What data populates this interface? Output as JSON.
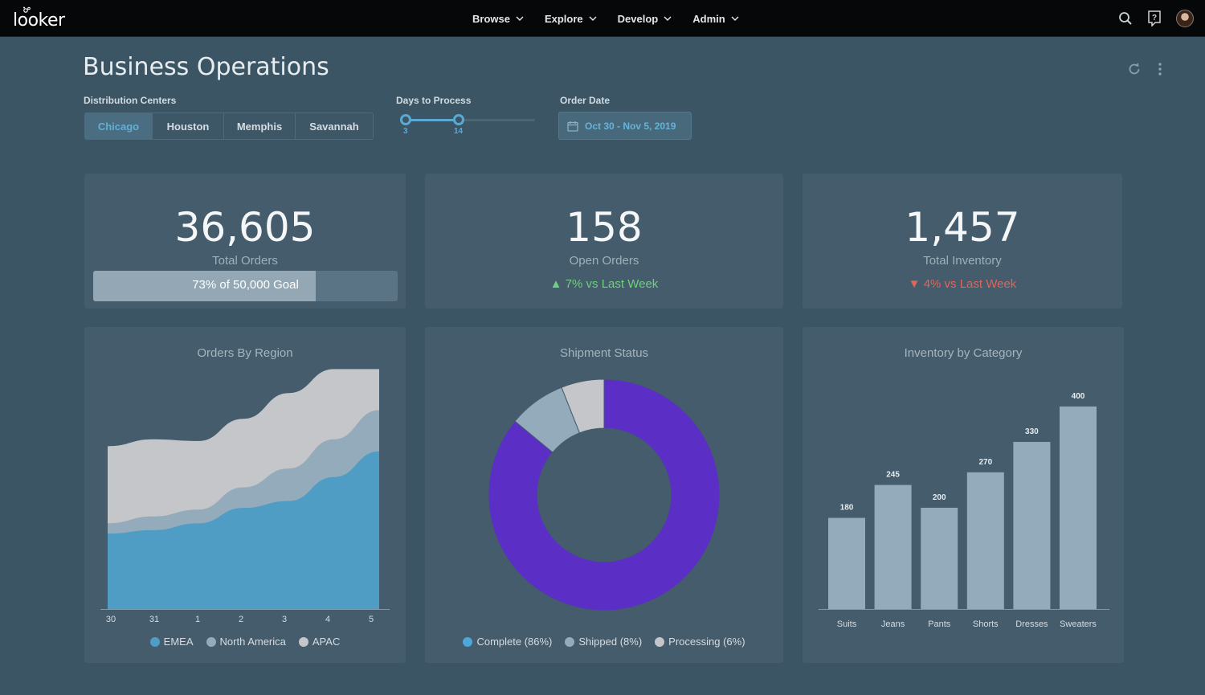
{
  "app": {
    "logo_text": "looker"
  },
  "nav": [
    {
      "label": "Browse"
    },
    {
      "label": "Explore"
    },
    {
      "label": "Develop"
    },
    {
      "label": "Admin"
    }
  ],
  "header": {
    "title": "Business Operations"
  },
  "filters": {
    "distribution_label": "Distribution Centers",
    "centers": [
      "Chicago",
      "Houston",
      "Memphis",
      "Savannah"
    ],
    "selected_center": "Chicago",
    "days_label": "Days to Process",
    "days_min": "3",
    "days_max": "14",
    "date_label": "Order Date",
    "date_value": "Oct 30 - Nov 5, 2019"
  },
  "kpis": {
    "total_orders": {
      "value": "36,605",
      "label": "Total Orders",
      "goal_text": "73% of 50,000 Goal",
      "goal_fraction": 0.73
    },
    "open_orders": {
      "value": "158",
      "label": "Open Orders",
      "delta": "7% vs Last Week",
      "direction": "up"
    },
    "total_inventory": {
      "value": "1,457",
      "label": "Total Inventory",
      "delta": "4% vs Last Week",
      "direction": "down"
    }
  },
  "colors": {
    "accent": "#5aa9d3",
    "emea": "#4f9cc4",
    "north_america": "#93abbb",
    "apac": "#c4c6c9",
    "complete": "#5b2ec6",
    "shipped": "#93abbb",
    "processing": "#c4c6c9",
    "bars": "#93abbb",
    "up": "#6fd07d",
    "down": "#e0655a"
  },
  "chart_data": [
    {
      "type": "area",
      "title": "Orders By Region",
      "categories": [
        "30",
        "31",
        "1",
        "2",
        "3",
        "4",
        "5"
      ],
      "stacked": true,
      "series": [
        {
          "name": "EMEA",
          "values": [
            44,
            46,
            50,
            59,
            63,
            77,
            92
          ]
        },
        {
          "name": "North America",
          "values": [
            6,
            8,
            8,
            12,
            19,
            22,
            24
          ]
        },
        {
          "name": "APAC",
          "values": [
            45,
            45,
            40,
            40,
            44,
            41,
            24
          ]
        }
      ],
      "ylim": [
        0,
        150
      ],
      "legend": "bottom"
    },
    {
      "type": "pie",
      "title": "Shipment Status",
      "donut": true,
      "labels": [
        "Complete (86%)",
        "Shipped (8%)",
        "Processing (6%)"
      ],
      "values": [
        86,
        8,
        6
      ],
      "legend": "bottom"
    },
    {
      "type": "bar",
      "title": "Inventory by Category",
      "categories": [
        "Suits",
        "Jeans",
        "Pants",
        "Shorts",
        "Dresses",
        "Sweaters"
      ],
      "values": [
        180,
        245,
        200,
        270,
        330,
        400
      ],
      "ylim": [
        0,
        430
      ]
    }
  ]
}
